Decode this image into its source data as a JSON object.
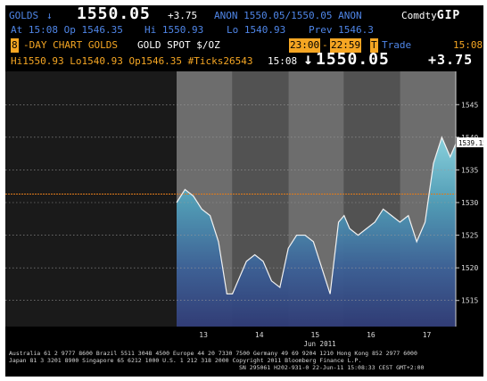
{
  "header": {
    "ticker": "GOLDS",
    "down_arrow": "↓",
    "price": "1550.05",
    "change": "+3.75",
    "bid_ask": "ANON 1550.05/1550.05 ANON",
    "brand": "Comdty",
    "function": "GIP",
    "at_time": "At 15:08 Op 1546.35",
    "hi": "Hi 1550.93",
    "lo": "Lo 1540.93",
    "prev": "Prev 1546.3",
    "period_num": "8",
    "chart_title": "-DAY CHART GOLDS",
    "security_name": "GOLD SPOT $/OZ",
    "time_from": "23:00",
    "time_to": "22:59",
    "type_box": "T",
    "type_label": "Trade",
    "clock": "15:08",
    "stats": "Hi1550.93 Lo1540.93 Op1546.35 #Ticks26543",
    "last_time": "15:08",
    "last_arrow": "↓",
    "last_price": "1550.05",
    "last_change": "+3.75"
  },
  "chart_data": {
    "type": "line",
    "title": "",
    "xlabel": "Jun 2011",
    "ylabel": "",
    "days": [
      "13",
      "14",
      "15",
      "16",
      "17"
    ],
    "ylim": [
      1511,
      1549
    ],
    "yticks": [
      1515,
      1520,
      1525,
      1530,
      1535,
      1540,
      1545
    ],
    "last_value_label": "1539.15",
    "prev_close": 1531.3,
    "series": [
      {
        "x": [
          0.0,
          0.15,
          0.3,
          0.45,
          0.6,
          0.75,
          0.9,
          1.0,
          1.1,
          1.25,
          1.4,
          1.55,
          1.7,
          1.85,
          2.0,
          2.15,
          2.3,
          2.45,
          2.6,
          2.75,
          2.9,
          3.0,
          3.1,
          3.25,
          3.4,
          3.55,
          3.7,
          3.85,
          4.0,
          4.15,
          4.3,
          4.45,
          4.6,
          4.75,
          4.9,
          5.0
        ],
        "y": [
          1530,
          1532,
          1531,
          1529,
          1528,
          1524,
          1516,
          1516,
          1518,
          1521,
          1522,
          1521,
          1518,
          1517,
          1523,
          1525,
          1525,
          1524,
          1520,
          1516,
          1527,
          1528,
          1526,
          1525,
          1526,
          1527,
          1529,
          1528,
          1527,
          1528,
          1524,
          1527,
          1536,
          1540,
          1537,
          1539
        ]
      }
    ]
  },
  "footer": {
    "line1": "Australia 61 2 9777 8600 Brazil 5511 3048 4500 Europe 44 20 7330 7500 Germany 49 69 9204 1210 Hong Kong 852 2977 6000",
    "line2": "Japan 81 3 3201 8900          Singapore 65 6212 1000      U.S. 1 212 318 2000           Copyright 2011 Bloomberg Finance L.P.",
    "line3": "SN 295061 H202-931-0 22-Jun-11 15:08:33 CEST GMT+2:00"
  }
}
